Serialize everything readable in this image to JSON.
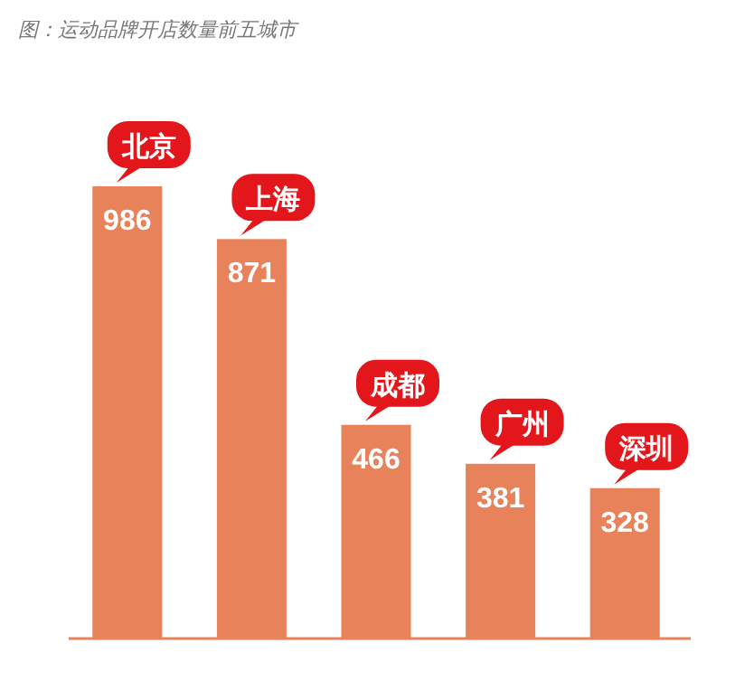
{
  "chart_data": {
    "type": "bar",
    "title": "图：运动品牌开店数量前五城市",
    "categories": [
      "北京",
      "上海",
      "成都",
      "广州",
      "深圳"
    ],
    "values": [
      986,
      871,
      466,
      381,
      328
    ],
    "color": "#e8825a",
    "data_labels": true
  }
}
